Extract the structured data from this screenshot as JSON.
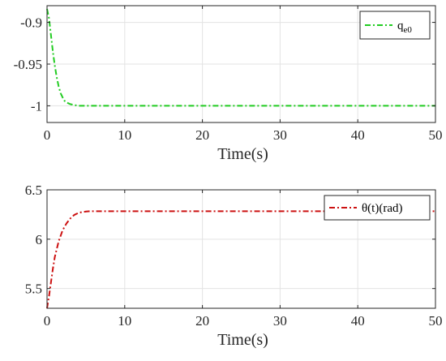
{
  "chart_data": [
    {
      "type": "line",
      "title": "",
      "xlabel": "Time(s)",
      "ylabel": "",
      "xlim": [
        0,
        50
      ],
      "ylim": [
        -1.02,
        -0.88
      ],
      "xticks": [
        0,
        10,
        20,
        30,
        40,
        50
      ],
      "xtick_labels": [
        "0",
        "10",
        "20",
        "30",
        "40",
        "50"
      ],
      "yticks": [
        -1,
        -0.95,
        -0.9
      ],
      "ytick_labels": [
        "-1",
        "-0.95",
        "-0.9"
      ],
      "grid": true,
      "legend": {
        "position": "top-right",
        "entries": [
          {
            "main": "q",
            "sub": "e0"
          }
        ]
      },
      "series": [
        {
          "name": "q_e0",
          "color": "#22cc22",
          "style": "dash-dot",
          "x": [
            0,
            0.25,
            0.5,
            0.75,
            1.0,
            1.25,
            1.5,
            1.75,
            2.0,
            2.25,
            2.5,
            3.0,
            3.5,
            4.0,
            5.0,
            10,
            20,
            30,
            40,
            50
          ],
          "y": [
            -0.884,
            -0.895,
            -0.915,
            -0.935,
            -0.952,
            -0.966,
            -0.977,
            -0.985,
            -0.99,
            -0.994,
            -0.996,
            -0.998,
            -0.999,
            -1.0,
            -1.0,
            -1.0,
            -1.0,
            -1.0,
            -1.0,
            -1.0
          ]
        }
      ]
    },
    {
      "type": "line",
      "title": "",
      "xlabel": "Time(s)",
      "ylabel": "",
      "xlim": [
        0,
        50
      ],
      "ylim": [
        5.3,
        6.5
      ],
      "xticks": [
        0,
        10,
        20,
        30,
        40,
        50
      ],
      "xtick_labels": [
        "0",
        "10",
        "20",
        "30",
        "40",
        "50"
      ],
      "yticks": [
        5.5,
        6,
        6.5
      ],
      "ytick_labels": [
        "5.5",
        "6",
        "6.5"
      ],
      "grid": true,
      "legend": {
        "position": "top-right",
        "entries": [
          {
            "main": "θ(t)(rad)",
            "sub": ""
          }
        ]
      },
      "series": [
        {
          "name": "θ(t)(rad)",
          "color": "#cc1111",
          "style": "dash-dot",
          "x": [
            0,
            0.25,
            0.5,
            0.75,
            1.0,
            1.5,
            2.0,
            2.5,
            3.0,
            3.5,
            4.0,
            4.5,
            5.0,
            5.5,
            6.0,
            10,
            20,
            30,
            40,
            50
          ],
          "y": [
            5.3,
            5.42,
            5.56,
            5.7,
            5.82,
            5.98,
            6.09,
            6.16,
            6.21,
            6.245,
            6.265,
            6.275,
            6.28,
            6.283,
            6.283,
            6.283,
            6.283,
            6.283,
            6.283,
            6.283
          ]
        }
      ]
    }
  ]
}
